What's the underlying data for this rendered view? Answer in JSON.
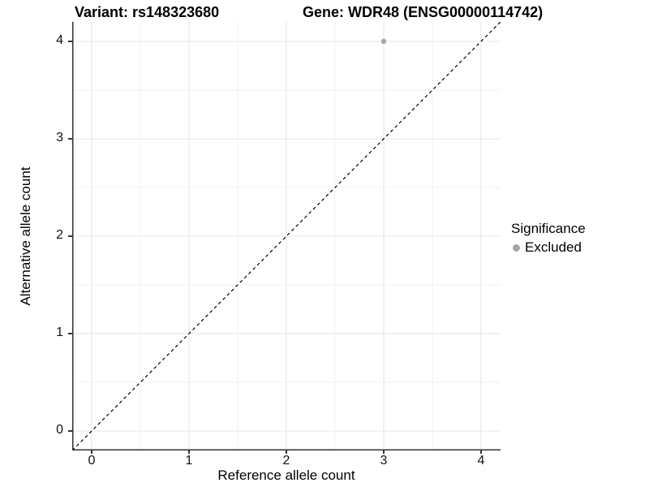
{
  "chart_data": {
    "type": "scatter",
    "titles": {
      "variant": "Variant: rs148323680",
      "gene": "Gene: WDR48 (ENSG00000114742)"
    },
    "xlabel": "Reference allele count",
    "ylabel": "Alternative allele count",
    "xlim": [
      -0.2,
      4.2
    ],
    "ylim": [
      -0.2,
      4.2
    ],
    "x_ticks": [
      0,
      1,
      2,
      3,
      4
    ],
    "y_ticks": [
      0,
      1,
      2,
      3,
      4
    ],
    "grid": "major and minor gridlines, white background",
    "legend": {
      "title": "Significance",
      "position": "right",
      "items": [
        {
          "label": "Excluded",
          "color": "#a6a6a6"
        }
      ]
    },
    "series": [
      {
        "name": "Excluded",
        "color": "#a6a6a6",
        "points": [
          {
            "x": 3,
            "y": 4
          }
        ]
      }
    ],
    "reference_line": {
      "type": "identity",
      "slope": 1,
      "intercept": 0,
      "style": "dashed",
      "color": "#000000"
    },
    "style_colors": {
      "major_grid": "#e4e4e4",
      "minor_grid": "#f1f1f1",
      "axis_line": "#333333",
      "text": "#000000"
    }
  }
}
